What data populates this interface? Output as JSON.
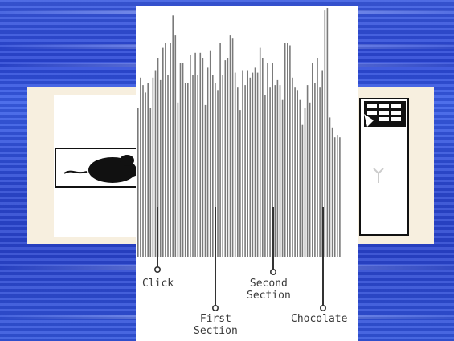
{
  "labels": {
    "click": "Click",
    "first_section": "First\nSection",
    "second_section": "Second\nSection",
    "chocolate": "Chocolate"
  },
  "colors": {
    "background_blue": "#2c49d3",
    "panel_cream": "#f7efdf",
    "bar_gray": "#7a7a7a"
  },
  "chart_data": {
    "type": "bar",
    "bars": [
      60,
      72,
      69,
      66,
      70,
      60,
      72,
      75,
      80,
      71,
      84,
      86,
      73,
      86,
      97,
      89,
      62,
      78,
      78,
      70,
      70,
      81,
      73,
      82,
      73,
      82,
      80,
      61,
      76,
      83,
      73,
      70,
      67,
      86,
      73,
      79,
      80,
      89,
      88,
      74,
      68,
      59,
      75,
      69,
      75,
      72,
      74,
      76,
      74,
      84,
      80,
      65,
      78,
      68,
      78,
      69,
      71,
      69,
      63,
      86,
      86,
      85,
      72,
      68,
      67,
      63,
      53,
      60,
      69,
      62,
      78,
      70,
      80,
      68,
      75,
      99,
      100,
      56,
      52,
      48,
      49,
      48
    ],
    "markers": [
      "Click",
      "First Section",
      "Second Section",
      "Chocolate"
    ]
  }
}
